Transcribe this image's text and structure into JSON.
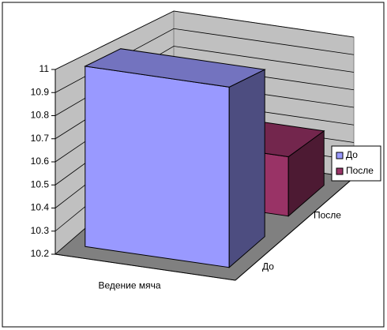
{
  "chart_data": {
    "type": "bar3d",
    "categories": [
      "Ведение мяча"
    ],
    "series": [
      {
        "name": "До",
        "color": "#9999ff",
        "values": [
          11
        ]
      },
      {
        "name": "После",
        "color": "#993366",
        "values": [
          10.5
        ]
      }
    ],
    "ylim": [
      10.2,
      11
    ],
    "yticks": [
      10.2,
      10.3,
      10.4,
      10.5,
      10.6,
      10.7,
      10.8,
      10.9,
      11
    ],
    "grid": true,
    "legend": "right"
  }
}
